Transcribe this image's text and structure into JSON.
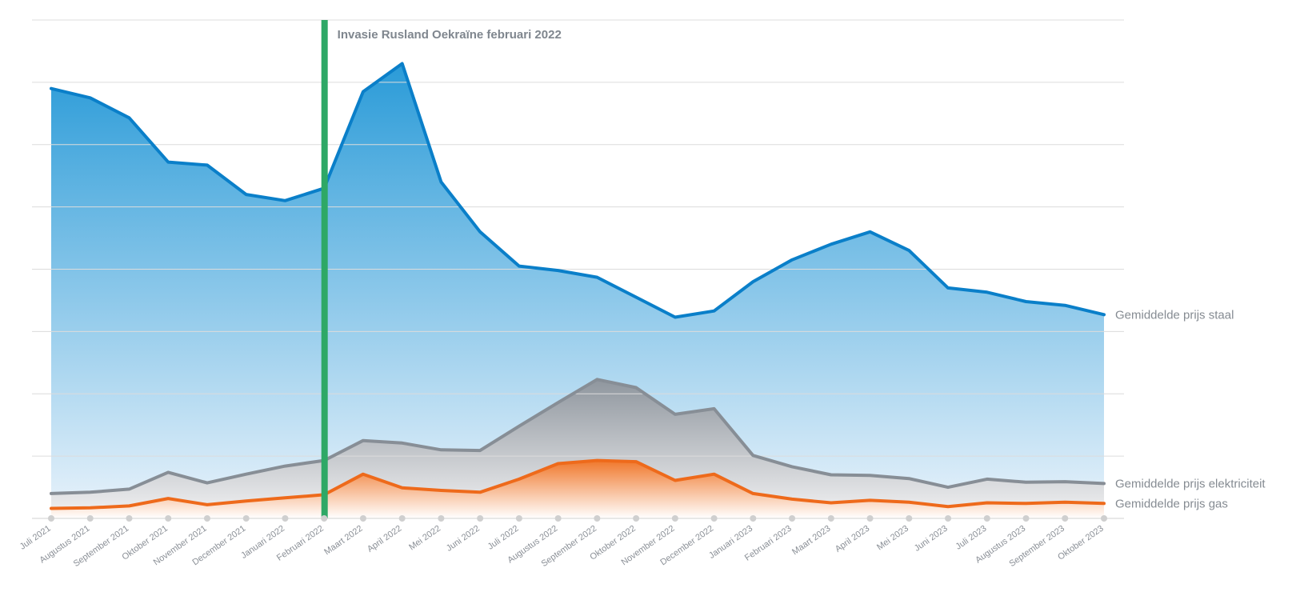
{
  "chart_data": {
    "type": "area",
    "title": "",
    "xlabel": "",
    "ylabel": "",
    "categories": [
      "Juli 2021",
      "Augustus 2021",
      "September 2021",
      "Oktober 2021",
      "November 2021",
      "December 2021",
      "Januari 2022",
      "Februari 2022",
      "Maart 2022",
      "April 2022",
      "Mei 2022",
      "Juni 2022",
      "Juli 2022",
      "Augustus 2022",
      "September 2022",
      "Oktober 2022",
      "November 2022",
      "December 2022",
      "Januari 2023",
      "Februari 2023",
      "Maart 2023",
      "April 2023",
      "Mei 2023",
      "Juni 2023",
      "Juli 2023",
      "Augustus 2023",
      "September 2023",
      "Oktober 2023"
    ],
    "ylim": [
      0,
      8
    ],
    "grid": true,
    "y_tick_labels_shown": false,
    "legend": "labels at line ends (right)",
    "series": [
      {
        "name": "Gemiddelde prijs staal",
        "color": "#0a7fc9",
        "fill_top": "#2a9bd8",
        "fill_bottom": "#eaf3fb",
        "values": [
          6.9,
          6.75,
          6.43,
          5.72,
          5.67,
          5.2,
          5.1,
          5.3,
          6.85,
          7.3,
          5.4,
          4.6,
          4.05,
          3.98,
          3.87,
          3.55,
          3.23,
          3.33,
          3.8,
          4.15,
          4.4,
          4.6,
          4.3,
          3.7,
          3.63,
          3.48,
          3.42,
          3.27
        ]
      },
      {
        "name": "Gemiddelde prijs elektriciteit",
        "color": "#878e96",
        "fill_top": "#8f969e",
        "fill_bottom": "#f3f3f4",
        "values": [
          0.4,
          0.42,
          0.47,
          0.74,
          0.57,
          0.71,
          0.84,
          0.93,
          1.25,
          1.21,
          1.1,
          1.09,
          1.48,
          1.86,
          2.23,
          2.1,
          1.67,
          1.76,
          1.01,
          0.83,
          0.7,
          0.69,
          0.64,
          0.5,
          0.63,
          0.58,
          0.59,
          0.56
        ]
      },
      {
        "name": "Gemiddelde prijs gas",
        "color": "#ee6a1b",
        "fill_top": "#f0782c",
        "fill_bottom": "#ffffff",
        "values": [
          0.16,
          0.17,
          0.2,
          0.32,
          0.22,
          0.28,
          0.33,
          0.38,
          0.71,
          0.49,
          0.45,
          0.42,
          0.63,
          0.88,
          0.93,
          0.91,
          0.61,
          0.71,
          0.4,
          0.31,
          0.25,
          0.29,
          0.26,
          0.19,
          0.25,
          0.24,
          0.26,
          0.24
        ]
      }
    ],
    "annotations": [
      {
        "type": "vertical-line",
        "category": "Februari 2022",
        "color": "#2ea866",
        "text": "Invasie Rusland Oekraïne februari 2022"
      }
    ]
  }
}
